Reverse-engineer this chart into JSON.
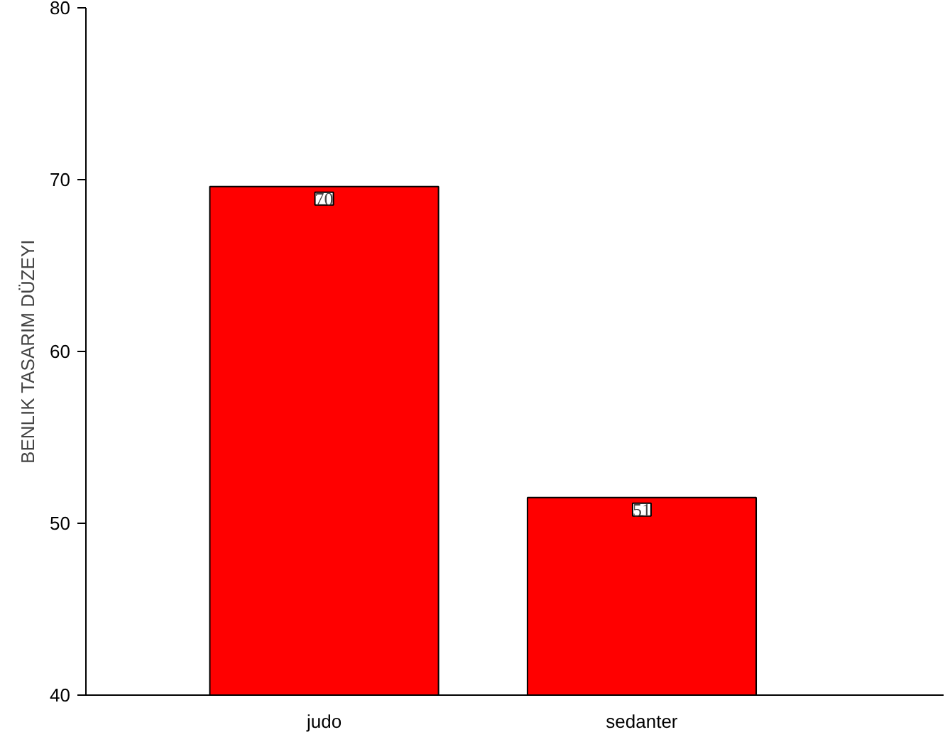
{
  "chart_data": {
    "type": "bar",
    "ylabel": "BENLIK TASARIM DÜZEYI",
    "categories": [
      "judo",
      "sedanter"
    ],
    "values": [
      69.6,
      51.5
    ],
    "value_labels": [
      "70",
      "51"
    ],
    "color": "#ff0000",
    "ylim": [
      40,
      80
    ],
    "yticks": [
      40,
      50,
      60,
      70,
      80
    ],
    "grid": false
  }
}
